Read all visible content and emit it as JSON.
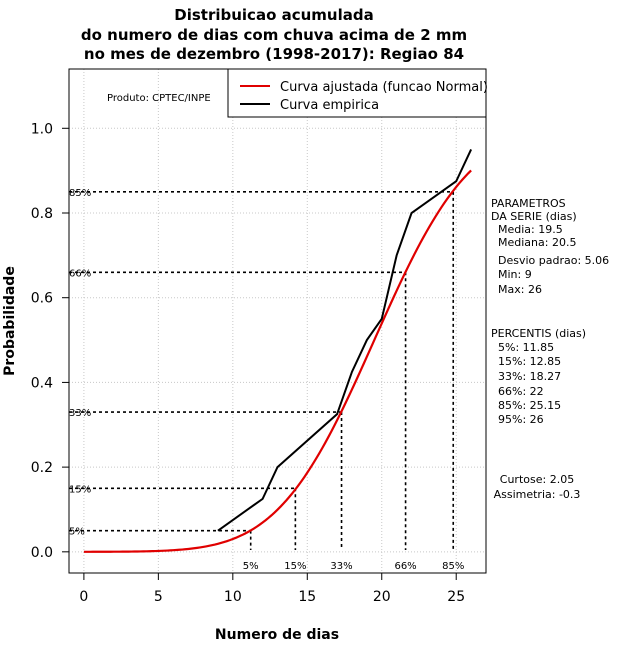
{
  "chart_data": {
    "type": "line",
    "title": [
      "Distribuicao acumulada",
      "do numero de dias com chuva acima de 2 mm",
      "no mes de dezembro (1998-2017): Regiao 84"
    ],
    "xlabel": "Numero de dias",
    "ylabel": "Probabilidade",
    "xlim": [
      -1,
      27
    ],
    "ylim": [
      -0.05,
      1.14
    ],
    "x_ticks": [
      0,
      5,
      10,
      15,
      20,
      25
    ],
    "y_ticks": [
      0.0,
      0.2,
      0.4,
      0.6,
      0.8,
      1.0
    ],
    "y_tick_labels": [
      "0.0",
      "0.2",
      "0.4",
      "0.6",
      "0.8",
      "1.0"
    ],
    "grid": true,
    "legend": {
      "placement": "top-right",
      "entries": [
        {
          "label": "Curva ajustada (funcao Normal)",
          "color": "#e00000"
        },
        {
          "label": "Curva empirica",
          "color": "#000000"
        }
      ]
    },
    "producer": "Produto: CPTEC/INPE",
    "series": [
      {
        "name": "Curva ajustada (funcao Normal)",
        "color": "#e00000",
        "distribution": "normal",
        "mean": 19.5,
        "sd": 5.06,
        "x_range": [
          0,
          26
        ]
      },
      {
        "name": "Curva empirica",
        "color": "#000000",
        "x": [
          9,
          11,
          12,
          13,
          17,
          18,
          19,
          20,
          21,
          22,
          23,
          25,
          26
        ],
        "y": [
          0.05,
          0.1,
          0.125,
          0.2,
          0.325,
          0.425,
          0.5,
          0.55,
          0.7,
          0.8,
          0.825,
          0.875,
          0.95
        ]
      }
    ],
    "percentile_lines": [
      {
        "label": "5%",
        "prob": 0.05,
        "x": 11.2
      },
      {
        "label": "15%",
        "prob": 0.15,
        "x": 14.2
      },
      {
        "label": "33%",
        "prob": 0.33,
        "x": 17.3
      },
      {
        "label": "66%",
        "prob": 0.66,
        "x": 21.6
      },
      {
        "label": "85%",
        "prob": 0.85,
        "x": 24.8
      }
    ],
    "side_panel": {
      "params_title": [
        "PARAMETROS",
        "DA SERIE (dias)"
      ],
      "params": [
        "Media: 19.5",
        "Mediana: 20.5",
        "Desvio padrao: 5.06",
        "Min: 9",
        "Max: 26"
      ],
      "percentis_title": "PERCENTIS (dias)",
      "percentis": [
        "5%: 11.85",
        "15%: 12.85",
        "33%: 18.27",
        "66%: 22",
        "85%: 25.15",
        "95%: 26"
      ],
      "stats": [
        "Curtose: 2.05",
        "Assimetria: -0.3"
      ]
    }
  }
}
